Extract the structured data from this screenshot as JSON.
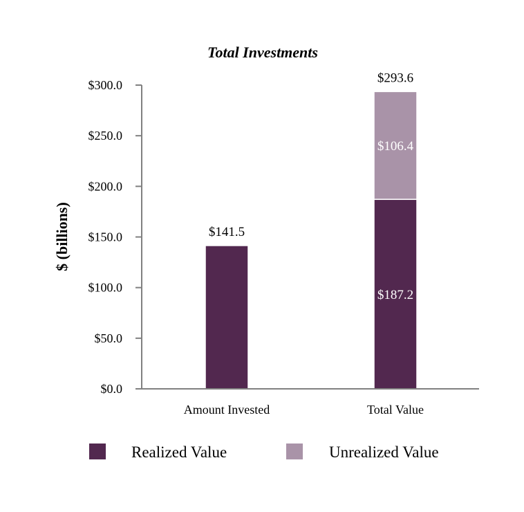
{
  "chart_data": {
    "type": "bar",
    "stacked": true,
    "title": "Total Investments",
    "ylabel": "$ (billions)",
    "xlabel": "",
    "ylim": [
      0,
      300
    ],
    "yticks": [
      0,
      50,
      100,
      150,
      200,
      250,
      300
    ],
    "ytick_labels": [
      "$0.0",
      "$50.0",
      "$100.0",
      "$150.0",
      "$200.0",
      "$250.0",
      "$300.0"
    ],
    "categories": [
      "Amount Invested",
      "Total Value"
    ],
    "series": [
      {
        "name": "Realized Value",
        "color": "#52284F",
        "values": [
          141.5,
          187.2
        ],
        "labels": [
          "",
          "$187.2"
        ]
      },
      {
        "name": "Unrealized Value",
        "color": "#A993A8",
        "values": [
          0,
          106.4
        ],
        "labels": [
          "",
          "$106.4"
        ]
      }
    ],
    "totals": [
      141.5,
      293.6
    ],
    "total_labels": [
      "$141.5",
      "$293.6"
    ],
    "legend_position": "bottom",
    "grid": false
  }
}
